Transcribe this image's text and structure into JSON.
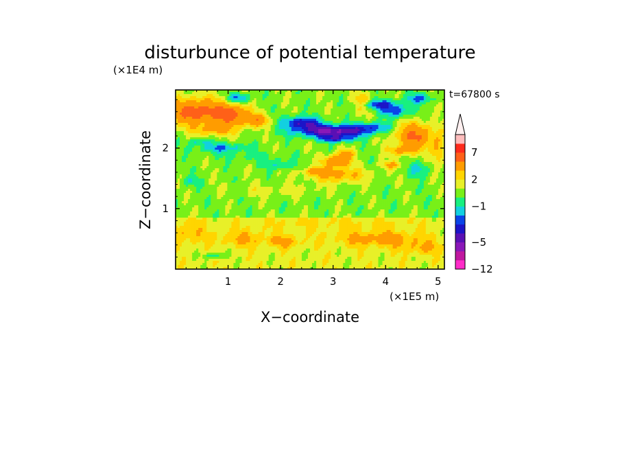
{
  "chart_data": {
    "type": "heatmap",
    "title": "disturbunce of potential temperature",
    "xlabel": "X−coordinate",
    "ylabel": "Z−coordinate",
    "x_unit": "(×1E5 m)",
    "y_unit": "(×1E4 m)",
    "time_label": "t=67800 s",
    "xlim": [
      0,
      5.12
    ],
    "ylim": [
      0,
      2.96
    ],
    "x_ticks": [
      1,
      2,
      3,
      4,
      5
    ],
    "x_tick_labels": [
      "1",
      "2",
      "3",
      "4",
      "5"
    ],
    "y_ticks": [
      1,
      2
    ],
    "y_tick_labels": [
      "1",
      "2"
    ],
    "colorbar": {
      "levels": [
        -12,
        -9,
        -7,
        -5,
        -4,
        -3,
        -2,
        -1,
        0,
        1,
        2,
        3,
        5,
        7,
        9,
        11
      ],
      "labeled_levels": [
        "7",
        "2",
        "−1",
        "−5",
        "−12"
      ],
      "colors": [
        "#ff2cc8",
        "#c0189f",
        "#8a18b8",
        "#5a10b4",
        "#1c14c8",
        "#0a44e8",
        "#12d0e0",
        "#18f080",
        "#78f018",
        "#e8f028",
        "#ffd500",
        "#ff9c00",
        "#ff6018",
        "#ff2a1c",
        "#ffbcbc"
      ],
      "extend_top_color": "#fff0f0"
    },
    "blobs": [
      {
        "x": 0.2,
        "z": 0.6,
        "sx": 0.35,
        "sz": 0.2,
        "a": 1.6
      },
      {
        "x": 1.3,
        "z": 0.5,
        "sx": 0.5,
        "sz": 0.12,
        "a": 1.8
      },
      {
        "x": 2.1,
        "z": 0.45,
        "sx": 0.3,
        "sz": 0.1,
        "a": 1.9
      },
      {
        "x": 3.9,
        "z": 0.5,
        "sx": 0.8,
        "sz": 0.12,
        "a": 2.4
      },
      {
        "x": 4.7,
        "z": 0.35,
        "sx": 0.4,
        "sz": 0.1,
        "a": 1.7
      },
      {
        "x": 0.75,
        "z": 0.22,
        "sx": 0.2,
        "sz": 0.05,
        "a": -2.5
      },
      {
        "x": 3.0,
        "z": 0.75,
        "sx": 1.6,
        "sz": 0.12,
        "a": 0.7
      },
      {
        "x": 1.9,
        "z": 1.3,
        "sx": 1.0,
        "sz": 0.1,
        "a": 1.0
      },
      {
        "x": 3.1,
        "z": 1.55,
        "sx": 0.55,
        "sz": 0.12,
        "a": 2.8
      },
      {
        "x": 2.7,
        "z": 1.62,
        "sx": 0.35,
        "sz": 0.06,
        "a": 2.2
      },
      {
        "x": 3.05,
        "z": 1.78,
        "sx": 0.25,
        "sz": 0.1,
        "a": 4.5
      },
      {
        "x": 3.25,
        "z": 1.9,
        "sx": 0.15,
        "sz": 0.08,
        "a": 3.0
      },
      {
        "x": 2.0,
        "z": 1.72,
        "sx": 0.3,
        "sz": 0.08,
        "a": -1.8
      },
      {
        "x": 1.5,
        "z": 1.85,
        "sx": 0.7,
        "sz": 0.08,
        "a": -0.8
      },
      {
        "x": 3.0,
        "z": 2.28,
        "sx": 0.7,
        "sz": 0.1,
        "a": -6.0
      },
      {
        "x": 3.05,
        "z": 2.15,
        "sx": 0.3,
        "sz": 0.06,
        "a": -3.5
      },
      {
        "x": 2.4,
        "z": 2.42,
        "sx": 0.35,
        "sz": 0.1,
        "a": -4.5
      },
      {
        "x": 3.8,
        "z": 2.35,
        "sx": 0.35,
        "sz": 0.08,
        "a": -2.5
      },
      {
        "x": 3.85,
        "z": 2.72,
        "sx": 0.4,
        "sz": 0.08,
        "a": -3.8
      },
      {
        "x": 4.2,
        "z": 2.6,
        "sx": 0.3,
        "sz": 0.1,
        "a": -3.0
      },
      {
        "x": 4.65,
        "z": 2.82,
        "sx": 0.25,
        "sz": 0.08,
        "a": -2.8
      },
      {
        "x": 1.2,
        "z": 2.82,
        "sx": 0.2,
        "sz": 0.08,
        "a": -3.5
      },
      {
        "x": 0.9,
        "z": 2.0,
        "sx": 0.5,
        "sz": 0.08,
        "a": -2.5
      },
      {
        "x": 0.45,
        "z": 2.1,
        "sx": 0.2,
        "sz": 0.05,
        "a": -2.0
      },
      {
        "x": 4.65,
        "z": 1.65,
        "sx": 0.2,
        "sz": 0.12,
        "a": -2.0
      },
      {
        "x": 0.3,
        "z": 1.45,
        "sx": 0.2,
        "sz": 0.08,
        "a": -1.5
      },
      {
        "x": 0.4,
        "z": 2.6,
        "sx": 0.55,
        "sz": 0.22,
        "a": 5.5
      },
      {
        "x": 1.1,
        "z": 2.55,
        "sx": 0.3,
        "sz": 0.18,
        "a": 4.5
      },
      {
        "x": 1.55,
        "z": 2.45,
        "sx": 0.25,
        "sz": 0.1,
        "a": 3.5
      },
      {
        "x": 0.75,
        "z": 2.3,
        "sx": 0.4,
        "sz": 0.1,
        "a": 2.5
      },
      {
        "x": 3.55,
        "z": 2.75,
        "sx": 0.2,
        "sz": 0.15,
        "a": 2.8
      },
      {
        "x": 4.55,
        "z": 2.2,
        "sx": 0.4,
        "sz": 0.22,
        "a": 4.5
      },
      {
        "x": 4.3,
        "z": 1.95,
        "sx": 0.25,
        "sz": 0.08,
        "a": 2.5
      },
      {
        "x": 4.1,
        "z": 1.72,
        "sx": 0.2,
        "sz": 0.06,
        "a": 2.5
      },
      {
        "x": 5.0,
        "z": 1.95,
        "sx": 0.12,
        "sz": 0.25,
        "a": 2.5
      }
    ]
  }
}
